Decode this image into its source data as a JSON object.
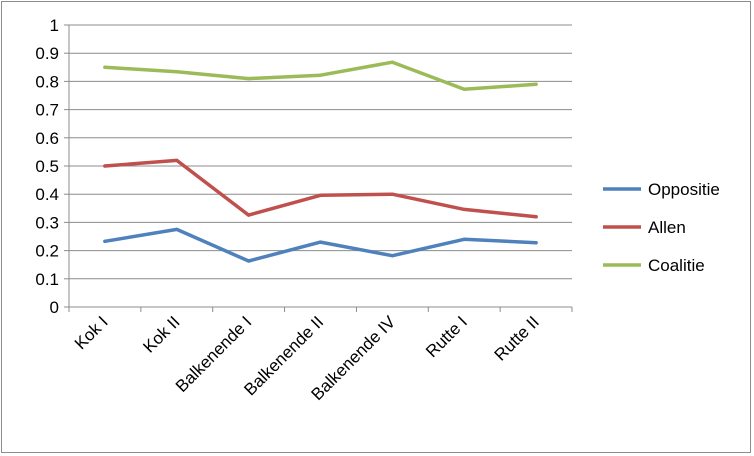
{
  "chart_data": {
    "type": "line",
    "title": "",
    "xlabel": "",
    "ylabel": "",
    "categories": [
      "Kok I",
      "Kok II",
      "Balkenende I",
      "Balkenende II",
      "Balkenende IV",
      "Rutte I",
      "Rutte II"
    ],
    "ylim": [
      0,
      1
    ],
    "yticks": [
      "0",
      "0.1",
      "0.2",
      "0.3",
      "0.4",
      "0.5",
      "0.6",
      "0.7",
      "0.8",
      "0.9",
      "1"
    ],
    "grid": true,
    "legend_position": "right",
    "series": [
      {
        "name": "Oppositie",
        "color": "#4f81bd",
        "values": [
          0.233,
          0.275,
          0.163,
          0.23,
          0.182,
          0.24,
          0.228
        ]
      },
      {
        "name": "Allen",
        "color": "#c0504d",
        "values": [
          0.5,
          0.52,
          0.326,
          0.396,
          0.4,
          0.346,
          0.32
        ]
      },
      {
        "name": "Coalitie",
        "color": "#9bbb59",
        "values": [
          0.85,
          0.834,
          0.81,
          0.822,
          0.868,
          0.772,
          0.79
        ]
      }
    ]
  }
}
